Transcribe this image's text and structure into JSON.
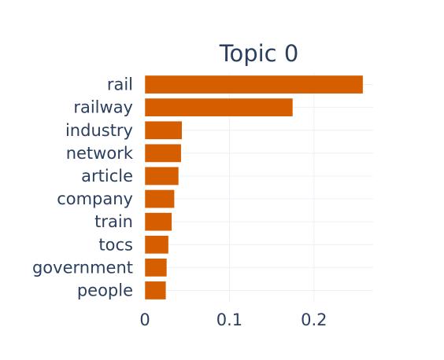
{
  "chart_data": {
    "type": "bar",
    "orientation": "horizontal",
    "title": "Topic 0",
    "xlabel": "",
    "ylabel": "",
    "categories": [
      "rail",
      "railway",
      "industry",
      "network",
      "article",
      "company",
      "train",
      "tocs",
      "government",
      "people"
    ],
    "values": [
      0.258,
      0.175,
      0.044,
      0.043,
      0.04,
      0.035,
      0.032,
      0.028,
      0.026,
      0.025
    ],
    "xlim": [
      0,
      0.27
    ],
    "x_ticks": [
      0,
      0.1,
      0.2
    ],
    "x_tick_labels": [
      "0",
      "0.1",
      "0.2"
    ],
    "grid": true,
    "bar_color": "#D55E00",
    "grid_color": "#ebf0f8",
    "text_color": "#2a3f5f"
  }
}
